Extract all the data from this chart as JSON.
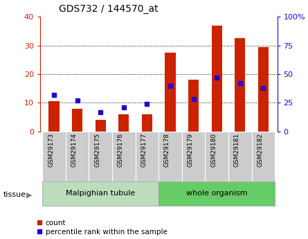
{
  "title": "GDS732 / 144570_at",
  "samples": [
    "GSM29173",
    "GSM29174",
    "GSM29175",
    "GSM29176",
    "GSM29177",
    "GSM29178",
    "GSM29179",
    "GSM29180",
    "GSM29181",
    "GSM29182"
  ],
  "count_values": [
    10.5,
    8.0,
    4.0,
    6.0,
    6.0,
    27.5,
    18.0,
    37.0,
    32.5,
    29.5
  ],
  "percentile_values": [
    32,
    27,
    17,
    21,
    24,
    40,
    28,
    47,
    42,
    38
  ],
  "left_ylim": [
    0,
    40
  ],
  "right_ylim": [
    0,
    100
  ],
  "left_yticks": [
    0,
    10,
    20,
    30,
    40
  ],
  "right_yticks": [
    0,
    25,
    50,
    75,
    100
  ],
  "right_yticklabels": [
    "0",
    "25",
    "50",
    "75",
    "100%"
  ],
  "bar_color": "#cc2200",
  "dot_color": "#2200cc",
  "bg_xtick": "#cccccc",
  "tissue_groups": [
    {
      "label": "Malpighian tubule",
      "start": 0,
      "end": 5,
      "color": "#bbddbb"
    },
    {
      "label": "whole organism",
      "start": 5,
      "end": 10,
      "color": "#66cc66"
    }
  ],
  "legend_count_label": "count",
  "legend_pct_label": "percentile rank within the sample",
  "tissue_label": "tissue",
  "bar_width": 0.45
}
